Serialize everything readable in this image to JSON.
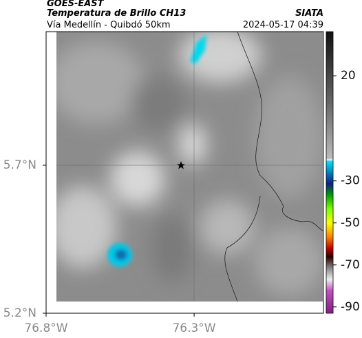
{
  "header": {
    "title": "GOES-EAST",
    "subtitle": "Temperatura de Brillo CH13",
    "location": "Vía Medellín - Quibdó 50km",
    "source": "SIATA",
    "datetime": "2024-05-17 04:39"
  },
  "map": {
    "xlim": [
      -76.8,
      -75.863
    ],
    "ylim": [
      5.2,
      6.151
    ],
    "xticks": [
      {
        "value": -76.8,
        "label": "76.8°W"
      },
      {
        "value": -76.3,
        "label": "76.3°W"
      }
    ],
    "yticks": [
      {
        "value": 5.7,
        "label": "5.7°N"
      },
      {
        "value": 5.2,
        "label": "5.2°N"
      }
    ],
    "colorbar": {
      "clim": [
        41,
        -93
      ],
      "ticks": [
        20,
        -30,
        -50,
        -70,
        -90
      ]
    }
  }
}
